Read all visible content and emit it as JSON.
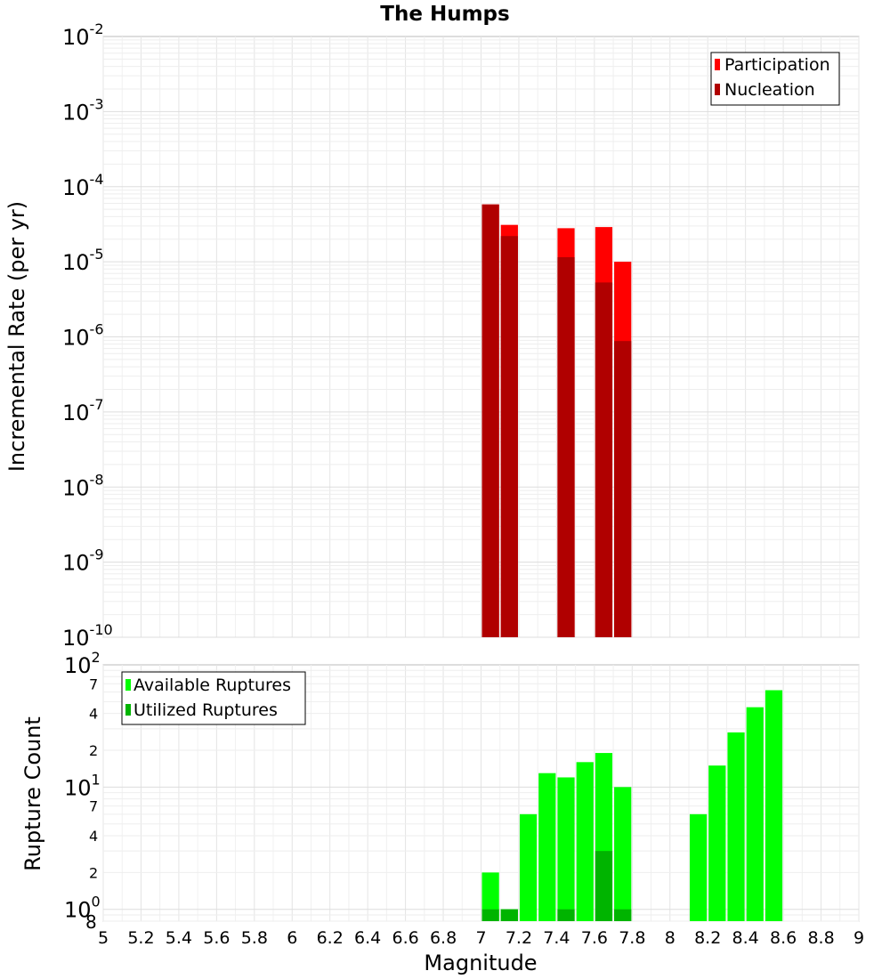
{
  "chart_data": [
    {
      "panel": "top",
      "type": "bar",
      "title": "The Humps",
      "xlabel": "",
      "ylabel": "Incremental Rate (per yr)",
      "yscale": "log",
      "ylim": [
        1e-10,
        0.01
      ],
      "xlim": [
        5,
        9
      ],
      "grid": true,
      "y_ticks": [
        {
          "base": "10",
          "exp": "-10",
          "value": 1e-10
        },
        {
          "base": "10",
          "exp": "-9",
          "value": 1e-09
        },
        {
          "base": "10",
          "exp": "-8",
          "value": 1e-08
        },
        {
          "base": "10",
          "exp": "-7",
          "value": 1e-07
        },
        {
          "base": "10",
          "exp": "-6",
          "value": 1e-06
        },
        {
          "base": "10",
          "exp": "-5",
          "value": 1e-05
        },
        {
          "base": "10",
          "exp": "-4",
          "value": 0.0001
        },
        {
          "base": "10",
          "exp": "-3",
          "value": 0.001
        },
        {
          "base": "10",
          "exp": "-2",
          "value": 0.01
        }
      ],
      "legend": {
        "location": "top-right",
        "entries": [
          {
            "label": "Participation",
            "color": "#ff0000"
          },
          {
            "label": "Nucleation",
            "color": "#b00000"
          }
        ]
      },
      "series": [
        {
          "name": "Participation",
          "color": "#ff0000",
          "points": [
            {
              "x": 7.05,
              "y": 5.8e-05
            },
            {
              "x": 7.15,
              "y": 3.1e-05
            },
            {
              "x": 7.45,
              "y": 2.8e-05
            },
            {
              "x": 7.65,
              "y": 2.9e-05
            },
            {
              "x": 7.75,
              "y": 1e-05
            }
          ]
        },
        {
          "name": "Nucleation",
          "color": "#b00000",
          "points": [
            {
              "x": 7.05,
              "y": 5.8e-05
            },
            {
              "x": 7.15,
              "y": 2.2e-05
            },
            {
              "x": 7.45,
              "y": 1.15e-05
            },
            {
              "x": 7.65,
              "y": 5.3e-06
            },
            {
              "x": 7.75,
              "y": 8.8e-07
            }
          ]
        }
      ]
    },
    {
      "panel": "bottom",
      "type": "bar",
      "title": "",
      "xlabel": "Magnitude",
      "ylabel": "Rupture Count",
      "yscale": "log",
      "ylim": [
        0.8,
        100
      ],
      "xlim": [
        5,
        9
      ],
      "grid": true,
      "x_ticks": [
        "5",
        "5.2",
        "5.4",
        "5.6",
        "5.8",
        "6",
        "6.2",
        "6.4",
        "6.6",
        "6.8",
        "7",
        "7.2",
        "7.4",
        "7.6",
        "7.8",
        "8",
        "8.2",
        "8.4",
        "8.6",
        "8.8",
        "9"
      ],
      "y_major_ticks": [
        {
          "base": "10",
          "exp": "0",
          "value": 1
        },
        {
          "base": "10",
          "exp": "1",
          "value": 10
        },
        {
          "base": "10",
          "exp": "2",
          "value": 100
        }
      ],
      "y_minor_ticks": [
        {
          "label": "8",
          "value": 0.8
        },
        {
          "label": "2",
          "value": 2
        },
        {
          "label": "4",
          "value": 4
        },
        {
          "label": "7",
          "value": 7
        },
        {
          "label": "2",
          "value": 20
        },
        {
          "label": "4",
          "value": 40
        },
        {
          "label": "7",
          "value": 70
        }
      ],
      "legend": {
        "location": "top-left",
        "entries": [
          {
            "label": "Available Ruptures",
            "color": "#00ff00"
          },
          {
            "label": "Utilized Ruptures",
            "color": "#00b400"
          }
        ]
      },
      "series": [
        {
          "name": "Available Ruptures",
          "color": "#00ff00",
          "points": [
            {
              "x": 7.05,
              "y": 2
            },
            {
              "x": 7.15,
              "y": 1
            },
            {
              "x": 7.25,
              "y": 6
            },
            {
              "x": 7.35,
              "y": 13
            },
            {
              "x": 7.45,
              "y": 12
            },
            {
              "x": 7.55,
              "y": 16
            },
            {
              "x": 7.65,
              "y": 19
            },
            {
              "x": 7.75,
              "y": 10
            },
            {
              "x": 8.15,
              "y": 6
            },
            {
              "x": 8.25,
              "y": 15
            },
            {
              "x": 8.35,
              "y": 28
            },
            {
              "x": 8.45,
              "y": 45
            },
            {
              "x": 8.55,
              "y": 62
            }
          ]
        },
        {
          "name": "Utilized Ruptures",
          "color": "#00b400",
          "points": [
            {
              "x": 7.05,
              "y": 1
            },
            {
              "x": 7.15,
              "y": 1
            },
            {
              "x": 7.45,
              "y": 1
            },
            {
              "x": 7.65,
              "y": 3
            },
            {
              "x": 7.75,
              "y": 1
            }
          ]
        }
      ]
    }
  ]
}
